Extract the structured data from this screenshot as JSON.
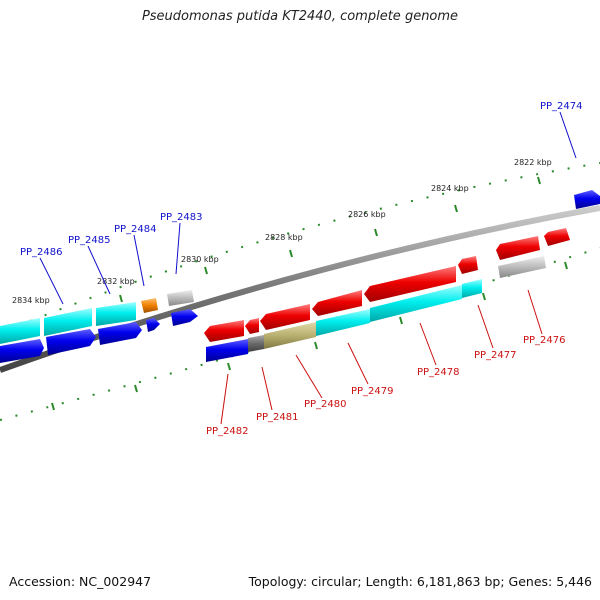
{
  "title": "Pseudomonas putida KT2440, complete genome",
  "footer": {
    "accession": "Accession: NC_002947",
    "summary": "Topology: circular; Length: 6,181,863 bp; Genes: 5,446"
  },
  "colors": {
    "red": "#e00000",
    "blue": "#0000dd",
    "cyan": "#00e0e0",
    "orange": "#f08000",
    "grey": "#b8b8b8",
    "dark_grey": "#707070",
    "khaki": "#b8b070",
    "tick": "#2a8a2a",
    "backbone": "#888888"
  },
  "kbp_labels": [
    "2822 kbp",
    "2824 kbp",
    "2826 kbp",
    "2828 kbp",
    "2830 kbp",
    "2832 kbp",
    "2834 kbp"
  ],
  "gene_labels": {
    "blue": [
      "PP_2474",
      "PP_2483",
      "PP_2484",
      "PP_2485",
      "PP_2486"
    ],
    "red": [
      "PP_2476",
      "PP_2477",
      "PP_2478",
      "PP_2479",
      "PP_2480",
      "PP_2481",
      "PP_2482"
    ]
  }
}
